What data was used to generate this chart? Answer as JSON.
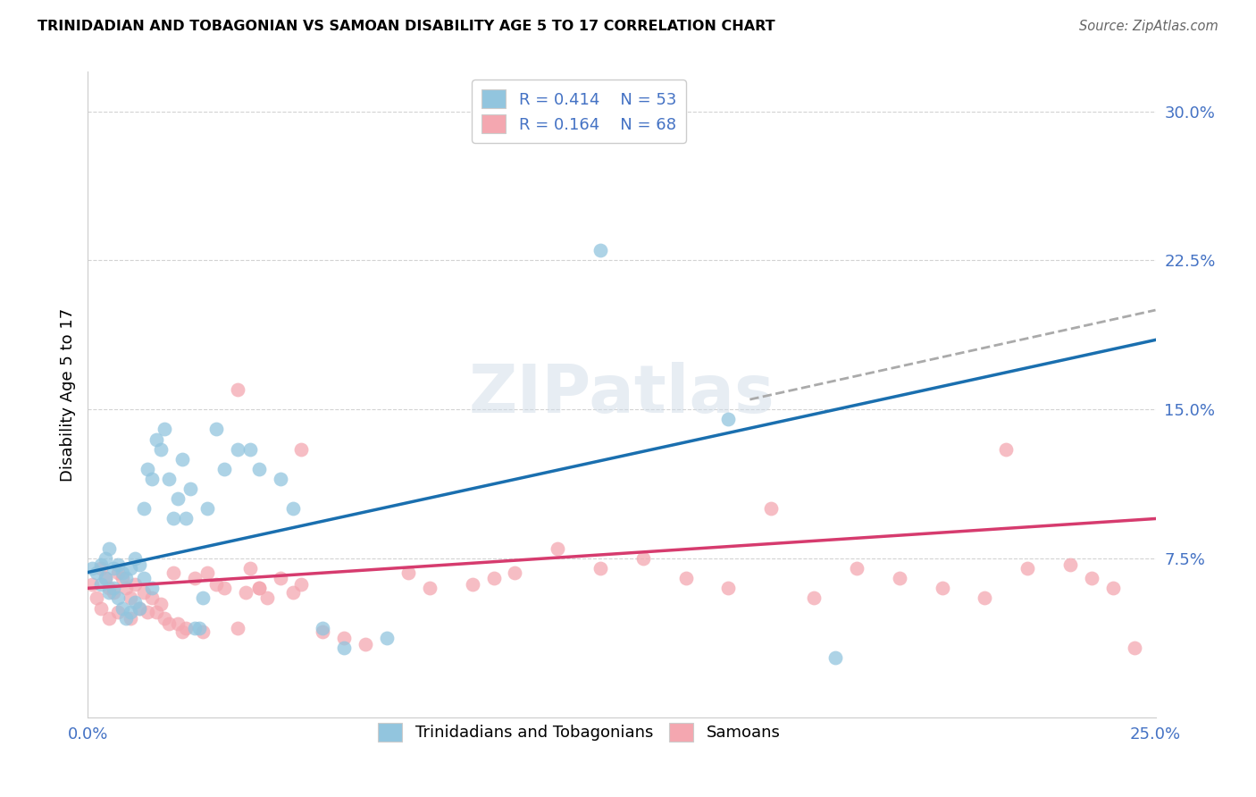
{
  "title": "TRINIDADIAN AND TOBAGONIAN VS SAMOAN DISABILITY AGE 5 TO 17 CORRELATION CHART",
  "source": "Source: ZipAtlas.com",
  "ylabel": "Disability Age 5 to 17",
  "xlim": [
    0.0,
    0.25
  ],
  "ylim": [
    -0.005,
    0.32
  ],
  "color_blue": "#92c5de",
  "color_pink": "#f4a7b0",
  "color_blue_line": "#1a6faf",
  "color_pink_line": "#d63b6e",
  "color_dash": "#aaaaaa",
  "watermark": "ZIPatlas",
  "legend_label1": "Trinidadians and Tobagonians",
  "legend_label2": "Samoans",
  "blue_x": [
    0.001,
    0.002,
    0.003,
    0.003,
    0.004,
    0.004,
    0.005,
    0.005,
    0.006,
    0.006,
    0.007,
    0.007,
    0.008,
    0.008,
    0.009,
    0.009,
    0.01,
    0.01,
    0.011,
    0.011,
    0.012,
    0.012,
    0.013,
    0.013,
    0.014,
    0.015,
    0.015,
    0.016,
    0.017,
    0.018,
    0.019,
    0.02,
    0.021,
    0.022,
    0.023,
    0.024,
    0.025,
    0.026,
    0.027,
    0.028,
    0.03,
    0.032,
    0.035,
    0.038,
    0.04,
    0.045,
    0.048,
    0.055,
    0.06,
    0.07,
    0.12,
    0.15,
    0.175
  ],
  "blue_y": [
    0.07,
    0.068,
    0.072,
    0.062,
    0.075,
    0.065,
    0.08,
    0.058,
    0.07,
    0.06,
    0.072,
    0.055,
    0.068,
    0.05,
    0.065,
    0.045,
    0.07,
    0.048,
    0.075,
    0.053,
    0.072,
    0.05,
    0.1,
    0.065,
    0.12,
    0.115,
    0.06,
    0.135,
    0.13,
    0.14,
    0.115,
    0.095,
    0.105,
    0.125,
    0.095,
    0.11,
    0.04,
    0.04,
    0.055,
    0.1,
    0.14,
    0.12,
    0.13,
    0.13,
    0.12,
    0.115,
    0.1,
    0.04,
    0.03,
    0.035,
    0.23,
    0.145,
    0.025
  ],
  "pink_x": [
    0.001,
    0.002,
    0.003,
    0.003,
    0.004,
    0.005,
    0.005,
    0.006,
    0.007,
    0.007,
    0.008,
    0.009,
    0.01,
    0.01,
    0.011,
    0.012,
    0.013,
    0.014,
    0.015,
    0.016,
    0.017,
    0.018,
    0.019,
    0.02,
    0.021,
    0.022,
    0.023,
    0.025,
    0.027,
    0.028,
    0.03,
    0.032,
    0.035,
    0.037,
    0.038,
    0.04,
    0.042,
    0.045,
    0.048,
    0.05,
    0.055,
    0.06,
    0.065,
    0.075,
    0.08,
    0.09,
    0.095,
    0.1,
    0.11,
    0.12,
    0.13,
    0.14,
    0.15,
    0.16,
    0.17,
    0.18,
    0.19,
    0.2,
    0.21,
    0.215,
    0.22,
    0.23,
    0.235,
    0.24,
    0.245,
    0.035,
    0.04,
    0.05
  ],
  "pink_y": [
    0.062,
    0.055,
    0.07,
    0.05,
    0.065,
    0.06,
    0.045,
    0.058,
    0.068,
    0.048,
    0.065,
    0.06,
    0.055,
    0.045,
    0.062,
    0.05,
    0.058,
    0.048,
    0.055,
    0.048,
    0.052,
    0.045,
    0.042,
    0.068,
    0.042,
    0.038,
    0.04,
    0.065,
    0.038,
    0.068,
    0.062,
    0.06,
    0.04,
    0.058,
    0.07,
    0.06,
    0.055,
    0.065,
    0.058,
    0.062,
    0.038,
    0.035,
    0.032,
    0.068,
    0.06,
    0.062,
    0.065,
    0.068,
    0.08,
    0.07,
    0.075,
    0.065,
    0.06,
    0.1,
    0.055,
    0.07,
    0.065,
    0.06,
    0.055,
    0.13,
    0.07,
    0.072,
    0.065,
    0.06,
    0.03,
    0.16,
    0.06,
    0.13
  ],
  "blue_line_x": [
    0.0,
    0.25
  ],
  "blue_line_y": [
    0.068,
    0.185
  ],
  "pink_line_x": [
    0.0,
    0.25
  ],
  "pink_line_y": [
    0.06,
    0.095
  ],
  "dash_line_x": [
    0.155,
    0.25
  ],
  "dash_line_y": [
    0.155,
    0.2
  ]
}
